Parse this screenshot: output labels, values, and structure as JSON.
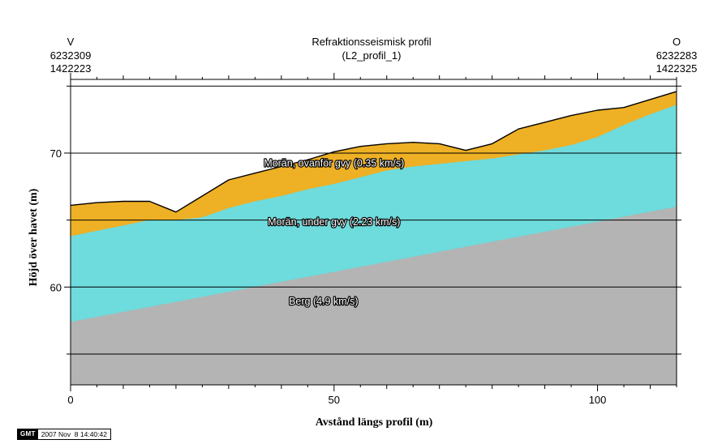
{
  "chart_data": {
    "type": "area",
    "title": "Refraktionsseismisk profil",
    "subtitle": "(L2_profil_1)",
    "left_end": {
      "label": "V",
      "coord_n": "6232309",
      "coord_e": "1422223"
    },
    "right_end": {
      "label": "O",
      "coord_n": "6232283",
      "coord_e": "1422325"
    },
    "xlabel": "Avstånd längs profil (m)",
    "ylabel": "Höjd över havet (m)",
    "xlim": [
      0,
      115
    ],
    "ylim": [
      52.7,
      75.5
    ],
    "x_ticks": [
      0,
      50,
      100
    ],
    "y_ticks": [
      60,
      70
    ],
    "gridlines_y": [
      55,
      60,
      65,
      70,
      75
    ],
    "grid": true,
    "colors": {
      "upper_layer": "#EEB025",
      "middle_layer": "#6EDBDC",
      "bedrock": "#B4B4B4",
      "grid": "#000000"
    },
    "series": [
      {
        "key": "surface",
        "x": [
          0,
          5,
          10,
          15,
          20,
          25,
          30,
          35,
          40,
          45,
          50,
          55,
          60,
          65,
          70,
          75,
          80,
          85,
          90,
          95,
          100,
          105,
          110,
          115
        ],
        "y": [
          66.1,
          66.3,
          66.4,
          66.4,
          65.6,
          66.8,
          68.0,
          68.5,
          69.0,
          69.5,
          70.1,
          70.5,
          70.7,
          70.8,
          70.7,
          70.2,
          70.7,
          71.8,
          72.3,
          72.8,
          73.2,
          73.4,
          74.0,
          74.6
        ]
      },
      {
        "key": "upper_boundary",
        "x": [
          0,
          5,
          10,
          15,
          20,
          25,
          30,
          35,
          40,
          45,
          50,
          55,
          60,
          65,
          70,
          75,
          80,
          85,
          90,
          95,
          100,
          105,
          110,
          115
        ],
        "y": [
          63.8,
          64.2,
          64.6,
          65.0,
          65.0,
          65.2,
          65.9,
          66.4,
          66.8,
          67.3,
          67.7,
          68.2,
          68.7,
          69.0,
          69.2,
          69.4,
          69.6,
          69.9,
          70.2,
          70.6,
          71.2,
          72.1,
          72.9,
          73.6
        ]
      },
      {
        "key": "bedrock_surface",
        "x": [
          0,
          115
        ],
        "y": [
          57.4,
          66.0
        ]
      }
    ],
    "annotations": [
      {
        "text": "Morän, ovanför gvy (0.35 km/s)",
        "x": 50,
        "y": 69.0
      },
      {
        "text": "Morän, under gvy (2.23 km/s)",
        "x": 50,
        "y": 64.6
      },
      {
        "text": "Berg (4.9 km/s)",
        "x": 48,
        "y": 58.7
      }
    ]
  },
  "stamp": {
    "logo": "GMT",
    "timestamp": "2007 Nov  8 14:40:42"
  }
}
